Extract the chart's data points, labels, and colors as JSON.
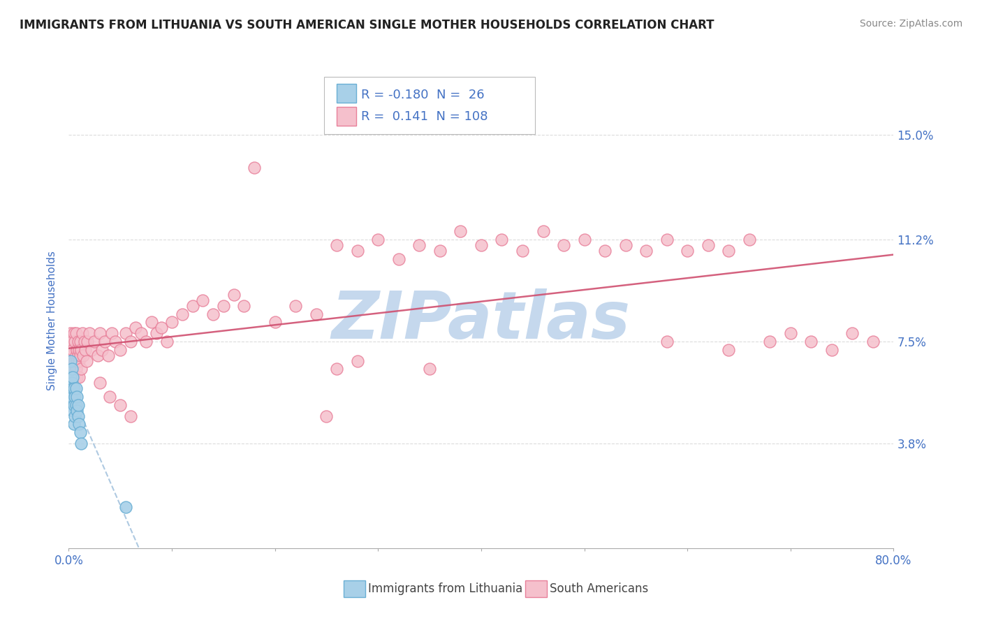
{
  "title": "IMMIGRANTS FROM LITHUANIA VS SOUTH AMERICAN SINGLE MOTHER HOUSEHOLDS CORRELATION CHART",
  "source": "Source: ZipAtlas.com",
  "ylabel": "Single Mother Households",
  "watermark": "ZIPatlas",
  "xlim": [
    0.0,
    0.8
  ],
  "ylim": [
    0.0,
    0.165
  ],
  "yticks": [
    0.038,
    0.075,
    0.112,
    0.15
  ],
  "ytick_labels": [
    "3.8%",
    "7.5%",
    "11.2%",
    "15.0%"
  ],
  "xtick_positions": [
    0.0,
    0.1,
    0.2,
    0.3,
    0.4,
    0.5,
    0.6,
    0.7,
    0.8
  ],
  "xtick_labels_edge": {
    "0": "0.0%",
    "8": "80.0%"
  },
  "legend_R1": "-0.180",
  "legend_N1": "26",
  "legend_R2": "0.141",
  "legend_N2": "108",
  "color_lithuania": "#A8D0E8",
  "color_lithuania_edge": "#6AAFD4",
  "color_south_american": "#F5C0CC",
  "color_south_american_edge": "#E8809A",
  "bg_color": "#FFFFFF",
  "grid_color": "#CCCCCC",
  "title_color": "#222222",
  "axis_label_color": "#4472C4",
  "watermark_color": "#C5D8ED",
  "legend_label_color": "#4472C4",
  "source_color": "#888888",
  "trend_lithuania_color": "#A0C0DC",
  "trend_sa_color": "#D05070",
  "lithuania_x": [
    0.001,
    0.001,
    0.002,
    0.002,
    0.002,
    0.003,
    0.003,
    0.003,
    0.004,
    0.004,
    0.004,
    0.005,
    0.005,
    0.005,
    0.006,
    0.006,
    0.007,
    0.007,
    0.008,
    0.008,
    0.009,
    0.009,
    0.01,
    0.011,
    0.012,
    0.055
  ],
  "lithuania_y": [
    0.058,
    0.052,
    0.062,
    0.055,
    0.068,
    0.06,
    0.055,
    0.065,
    0.058,
    0.062,
    0.05,
    0.052,
    0.058,
    0.045,
    0.055,
    0.048,
    0.052,
    0.058,
    0.05,
    0.055,
    0.048,
    0.052,
    0.045,
    0.042,
    0.038,
    0.015
  ],
  "south_american_x": [
    0.001,
    0.001,
    0.002,
    0.002,
    0.002,
    0.003,
    0.003,
    0.003,
    0.004,
    0.004,
    0.004,
    0.005,
    0.005,
    0.005,
    0.005,
    0.006,
    0.006,
    0.006,
    0.007,
    0.007,
    0.007,
    0.008,
    0.008,
    0.008,
    0.009,
    0.009,
    0.01,
    0.01,
    0.01,
    0.011,
    0.011,
    0.012,
    0.012,
    0.013,
    0.014,
    0.015,
    0.016,
    0.017,
    0.018,
    0.02,
    0.022,
    0.025,
    0.028,
    0.03,
    0.032,
    0.035,
    0.038,
    0.042,
    0.045,
    0.05,
    0.055,
    0.06,
    0.065,
    0.07,
    0.075,
    0.08,
    0.085,
    0.09,
    0.095,
    0.1,
    0.11,
    0.12,
    0.13,
    0.14,
    0.15,
    0.16,
    0.17,
    0.18,
    0.2,
    0.22,
    0.24,
    0.26,
    0.28,
    0.3,
    0.32,
    0.34,
    0.36,
    0.38,
    0.4,
    0.42,
    0.44,
    0.46,
    0.48,
    0.5,
    0.52,
    0.54,
    0.56,
    0.58,
    0.6,
    0.62,
    0.64,
    0.66,
    0.68,
    0.7,
    0.72,
    0.74,
    0.76,
    0.78,
    0.64,
    0.58,
    0.35,
    0.28,
    0.26,
    0.25,
    0.03,
    0.04,
    0.05,
    0.06
  ],
  "south_american_y": [
    0.072,
    0.065,
    0.078,
    0.068,
    0.058,
    0.075,
    0.065,
    0.07,
    0.072,
    0.065,
    0.058,
    0.078,
    0.068,
    0.062,
    0.055,
    0.075,
    0.068,
    0.062,
    0.078,
    0.07,
    0.065,
    0.072,
    0.068,
    0.062,
    0.075,
    0.07,
    0.072,
    0.068,
    0.062,
    0.075,
    0.07,
    0.072,
    0.065,
    0.078,
    0.07,
    0.075,
    0.072,
    0.068,
    0.075,
    0.078,
    0.072,
    0.075,
    0.07,
    0.078,
    0.072,
    0.075,
    0.07,
    0.078,
    0.075,
    0.072,
    0.078,
    0.075,
    0.08,
    0.078,
    0.075,
    0.082,
    0.078,
    0.08,
    0.075,
    0.082,
    0.085,
    0.088,
    0.09,
    0.085,
    0.088,
    0.092,
    0.088,
    0.138,
    0.082,
    0.088,
    0.085,
    0.11,
    0.108,
    0.112,
    0.105,
    0.11,
    0.108,
    0.115,
    0.11,
    0.112,
    0.108,
    0.115,
    0.11,
    0.112,
    0.108,
    0.11,
    0.108,
    0.112,
    0.108,
    0.11,
    0.108,
    0.112,
    0.075,
    0.078,
    0.075,
    0.072,
    0.078,
    0.075,
    0.072,
    0.075,
    0.065,
    0.068,
    0.065,
    0.048,
    0.06,
    0.055,
    0.052,
    0.048
  ]
}
